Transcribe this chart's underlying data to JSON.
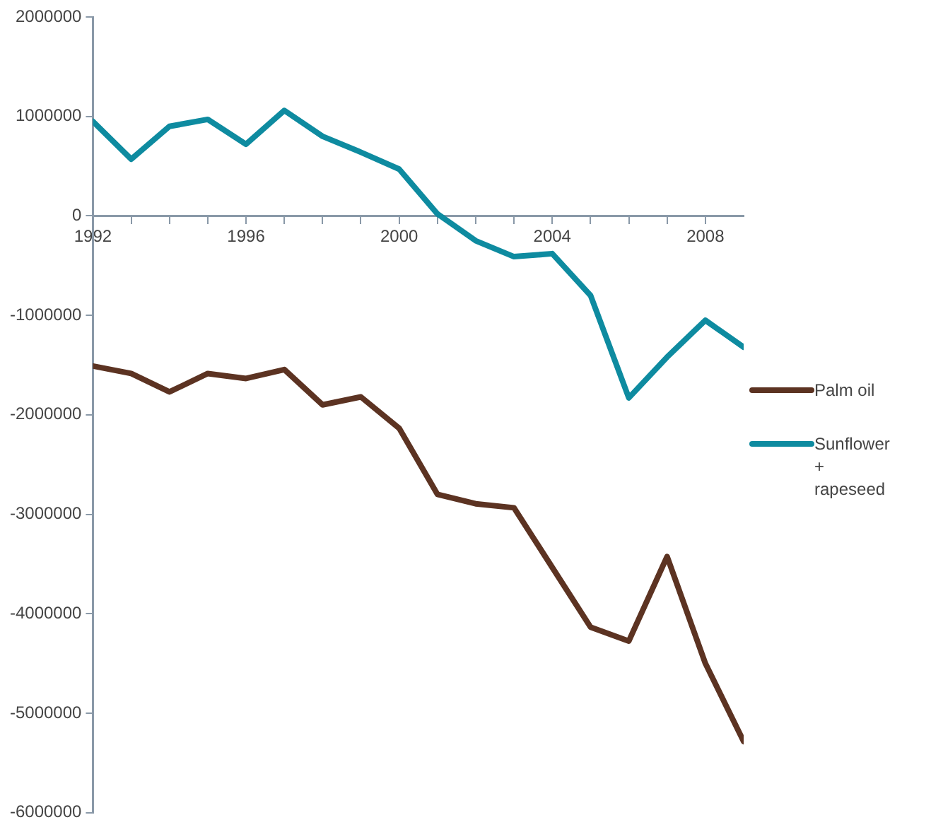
{
  "chart_data": {
    "type": "line",
    "x": [
      1992,
      1993,
      1994,
      1995,
      1996,
      1997,
      1998,
      1999,
      2000,
      2001,
      2002,
      2003,
      2004,
      2005,
      2006,
      2007,
      2008,
      2009
    ],
    "series": [
      {
        "name": "Palm oil",
        "color": "#5c3322",
        "values": [
          -1510000,
          -1585000,
          -1770000,
          -1585000,
          -1635000,
          -1545000,
          -1900000,
          -1820000,
          -2135000,
          -2800000,
          -2895000,
          -2935000,
          -3535000,
          -4135000,
          -4275000,
          -3425000,
          -4500000,
          -5285000
        ]
      },
      {
        "name": "Sunflower + rapeseed",
        "color": "#0e8ba0",
        "values": [
          950000,
          570000,
          900000,
          970000,
          720000,
          1060000,
          800000,
          640000,
          470000,
          20000,
          -250000,
          -410000,
          -380000,
          -800000,
          -1830000,
          -1420000,
          -1050000,
          -1320000
        ]
      }
    ],
    "xlim": [
      1992,
      2009
    ],
    "xticks": [
      1992,
      {
        "value": 1993,
        "label": null
      },
      {
        "value": 1994,
        "label": null
      },
      {
        "value": 1995,
        "label": null
      },
      1996,
      {
        "value": 1997,
        "label": null
      },
      {
        "value": 1998,
        "label": null
      },
      {
        "value": 1999,
        "label": null
      },
      2000,
      {
        "value": 2001,
        "label": null
      },
      {
        "value": 2002,
        "label": null
      },
      {
        "value": 2003,
        "label": null
      },
      2004,
      {
        "value": 2005,
        "label": null
      },
      {
        "value": 2006,
        "label": null
      },
      {
        "value": 2007,
        "label": null
      },
      2008
    ],
    "ylim": [
      -6000000,
      2000000
    ],
    "yticks": [
      -6000000,
      -5000000,
      -4000000,
      -3000000,
      -2000000,
      -1000000,
      0,
      1000000,
      2000000
    ],
    "grid": false,
    "legend": "right",
    "marker": "none"
  }
}
